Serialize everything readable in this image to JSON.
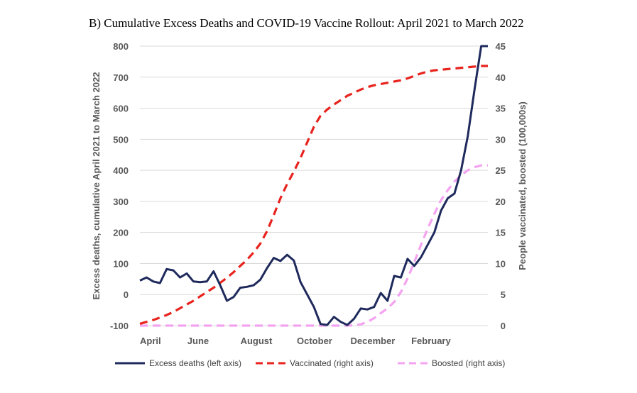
{
  "chart_data": {
    "type": "line",
    "title": "B)  Cumulative Excess Deaths and COVID-19 Vaccine Rollout: April 2021 to March 2022",
    "ylabel_left": "Excess deaths, cumulative April 2021 to March 2022",
    "ylabel_right": "People vaccinated, boosted (100,000s)",
    "xlabel": "",
    "x_tick_labels": [
      "April",
      "June",
      "August",
      "October",
      "December",
      "February"
    ],
    "x_tick_weeks": [
      0,
      8.7,
      17.4,
      26.1,
      34.8,
      43.5
    ],
    "y_left_ticks": [
      "800",
      "700",
      "600",
      "500",
      "400",
      "300",
      "200",
      "100",
      "0",
      "-100"
    ],
    "y_right_ticks": [
      "45",
      "40",
      "35",
      "30",
      "25",
      "20",
      "15",
      "10",
      "5",
      "0"
    ],
    "ylim_left": [
      -100,
      800
    ],
    "ylim_right": [
      0,
      45
    ],
    "xlim": [
      0,
      52
    ],
    "grid": true,
    "legend_position": "bottom",
    "x": [
      0,
      1,
      2,
      3,
      4,
      5,
      6,
      7,
      8,
      9,
      10,
      11,
      12,
      13,
      14,
      15,
      16,
      17,
      18,
      19,
      20,
      21,
      22,
      23,
      24,
      25,
      26,
      27,
      28,
      29,
      30,
      31,
      32,
      33,
      34,
      35,
      36,
      37,
      38,
      39,
      40,
      41,
      42,
      43,
      44,
      45,
      46,
      47,
      48,
      49,
      50,
      51,
      52
    ],
    "series": [
      {
        "name": "Excess deaths (left axis)",
        "axis": "left",
        "color": "#1f2a5c",
        "dash": "solid",
        "values": [
          45,
          55,
          42,
          37,
          82,
          78,
          55,
          68,
          42,
          40,
          42,
          75,
          30,
          -20,
          -8,
          22,
          25,
          30,
          48,
          85,
          118,
          108,
          128,
          110,
          40,
          0,
          -40,
          -95,
          -98,
          -72,
          -88,
          -98,
          -78,
          -45,
          -48,
          -40,
          5,
          -20,
          60,
          55,
          115,
          92,
          120,
          160,
          200,
          270,
          310,
          325,
          400,
          510,
          660,
          800,
          800
        ],
        "values_note": ""
      },
      {
        "name": "Vaccinated (right axis)",
        "axis": "right",
        "color": "#e8231e",
        "dash": "dashed",
        "values": [
          0.3,
          0.6,
          0.9,
          1.3,
          1.7,
          2.2,
          2.8,
          3.4,
          4.0,
          4.7,
          5.4,
          6.1,
          6.9,
          7.7,
          8.6,
          9.6,
          10.6,
          11.8,
          13.2,
          15.2,
          17.8,
          20.5,
          22.8,
          24.8,
          27.0,
          29.5,
          32.0,
          33.8,
          34.8,
          35.6,
          36.3,
          37.0,
          37.5,
          38.0,
          38.4,
          38.7,
          38.9,
          39.1,
          39.3,
          39.5,
          39.8,
          40.2,
          40.6,
          40.9,
          41.1,
          41.2,
          41.3,
          41.4,
          41.5,
          41.6,
          41.7,
          41.8,
          41.8
        ]
      },
      {
        "name": "Boosted (right axis)",
        "axis": "right",
        "color": "#f4a3f0",
        "dash": "dashed",
        "values": [
          0,
          0,
          0,
          0,
          0,
          0,
          0,
          0,
          0,
          0,
          0,
          0,
          0,
          0,
          0,
          0,
          0,
          0,
          0,
          0,
          0,
          0,
          0,
          0,
          0,
          0,
          0,
          0,
          0,
          0,
          0,
          0,
          0.05,
          0.2,
          0.6,
          1.2,
          2.0,
          2.8,
          3.8,
          5.4,
          7.6,
          10.2,
          13.0,
          15.6,
          18.0,
          20.2,
          21.8,
          23.2,
          24.2,
          25.0,
          25.5,
          25.8,
          25.8
        ]
      }
    ]
  },
  "legend": {
    "items": [
      {
        "label": "Excess deaths (left axis)",
        "color": "#1f2a5c",
        "dash": "solid"
      },
      {
        "label": "Vaccinated (right axis)",
        "color": "#e8231e",
        "dash": "dashed"
      },
      {
        "label": "Boosted (right axis)",
        "color": "#f4a3f0",
        "dash": "dashed"
      }
    ]
  }
}
